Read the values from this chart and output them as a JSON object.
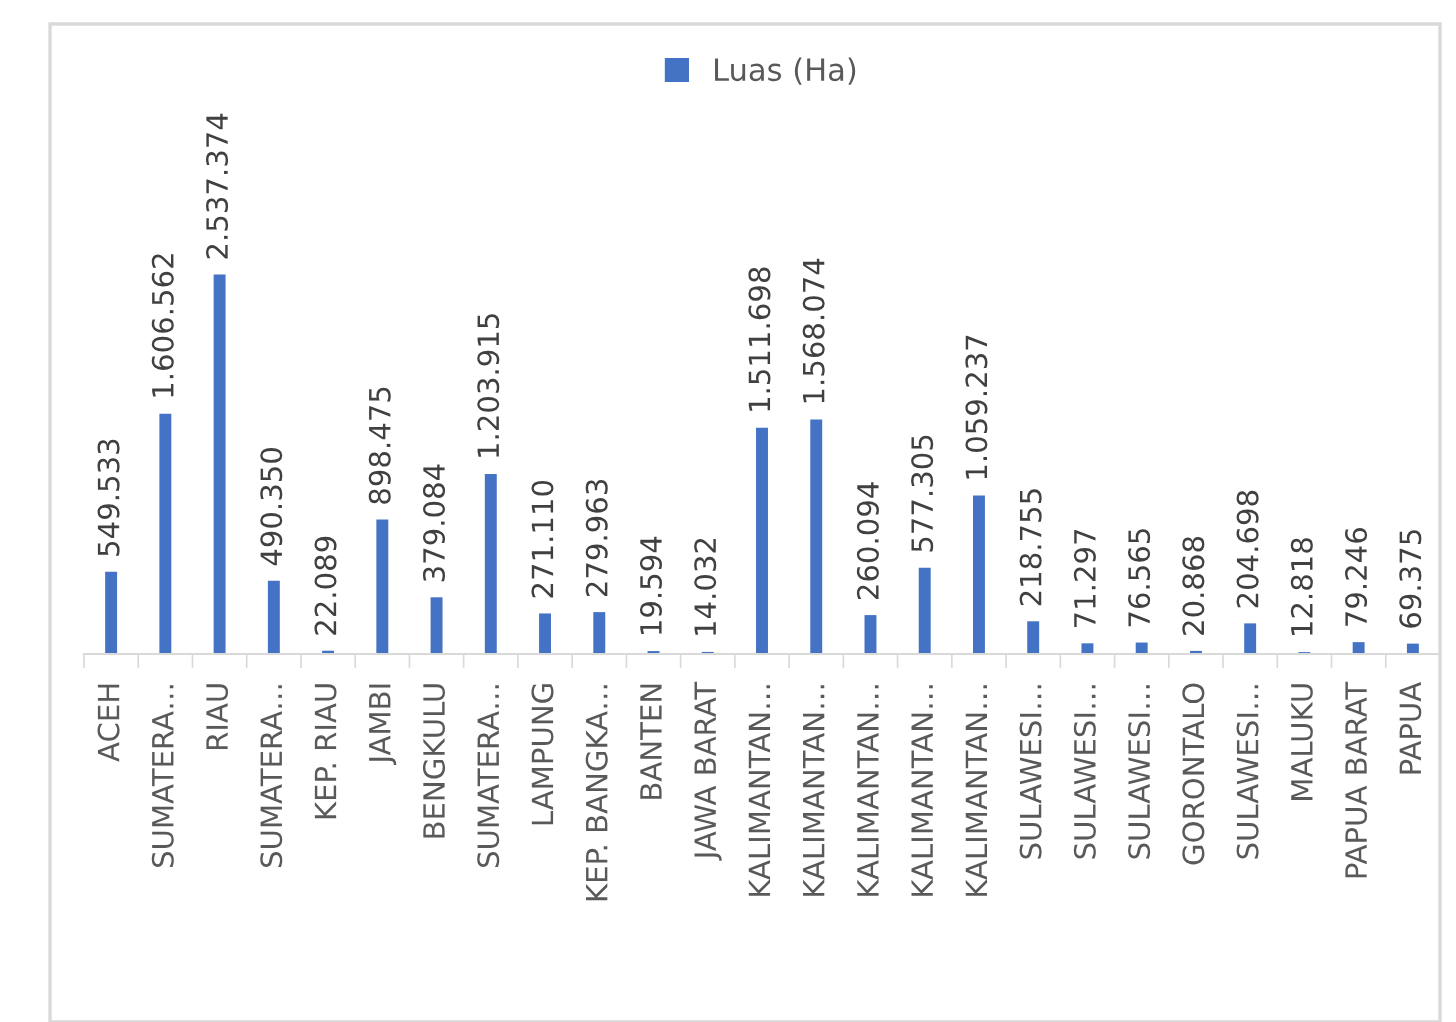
{
  "chart_data": {
    "type": "bar",
    "categories": [
      "ACEH",
      "SUMATERA…",
      "RIAU",
      "SUMATERA…",
      "KEP. RIAU",
      "JAMBI",
      "BENGKULU",
      "SUMATERA…",
      "LAMPUNG",
      "KEP. BANGKA…",
      "BANTEN",
      "JAWA BARAT",
      "KALIMANTAN…",
      "KALIMANTAN…",
      "KALIMANTAN…",
      "KALIMANTAN…",
      "KALIMANTAN…",
      "SULAWESI…",
      "SULAWESI…",
      "SULAWESI…",
      "GORONTALO",
      "SULAWESI…",
      "MALUKU",
      "PAPUA BARAT",
      "PAPUA"
    ],
    "series": [
      {
        "name": "Luas (Ha)",
        "color": "#4472c4",
        "values": [
          549533,
          1606562,
          2537374,
          490350,
          22089,
          898475,
          379084,
          1203915,
          271110,
          279963,
          19594,
          14032,
          1511698,
          1568074,
          260094,
          577305,
          1059237,
          218755,
          71297,
          76565,
          20868,
          204698,
          12818,
          79246,
          69375
        ],
        "value_labels": [
          "549.533",
          "1.606.562",
          "2.537.374",
          "490.350",
          "22.089",
          "898.475",
          "379.084",
          "1.203.915",
          "271.110",
          "279.963",
          "19.594",
          "14.032",
          "1.511.698",
          "1.568.074",
          "260.094",
          "577.305",
          "1.059.237",
          "218.755",
          "71.297",
          "76.565",
          "20.868",
          "204.698",
          "12.818",
          "79.246",
          "69.375"
        ]
      }
    ],
    "legend": "top"
  }
}
